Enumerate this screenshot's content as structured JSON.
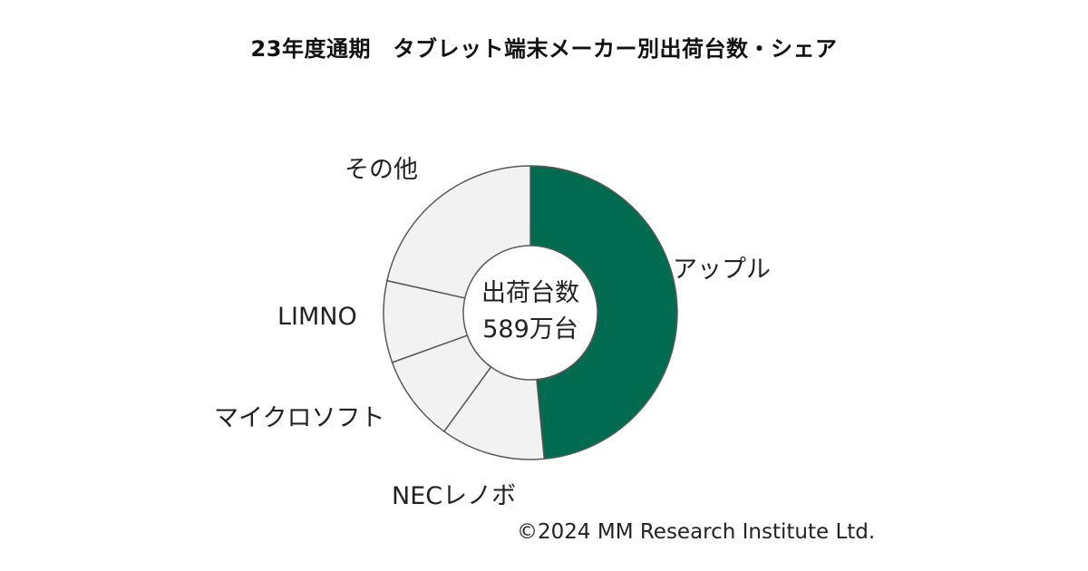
{
  "chart_data": {
    "type": "pie",
    "variant": "donut",
    "title": "23年度通期　タブレット端末メーカー別出荷台数・シェア",
    "center_label_line1": "出荷台数",
    "center_label_line2": "589万台",
    "categories": [
      "アップル",
      "NECレノボ",
      "マイクロソフト",
      "LIMNO",
      "その他"
    ],
    "values": [
      48.5,
      11.5,
      9.5,
      9.0,
      21.5
    ],
    "colors": [
      "#006b4f",
      "#f2f2f2",
      "#f2f2f2",
      "#f2f2f2",
      "#f2f2f2"
    ],
    "legend": "none"
  },
  "footer": {
    "copyright": "©2024  MM Research Institute Ltd."
  }
}
